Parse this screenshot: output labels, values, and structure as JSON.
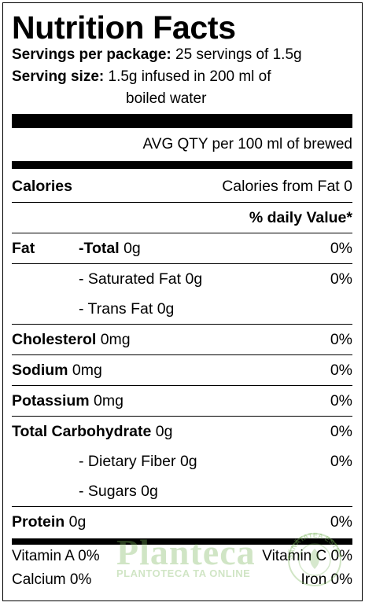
{
  "title": "Nutrition Facts",
  "servings": {
    "label": "Servings per package:",
    "value": "25 servings of 1.5g"
  },
  "serving_size": {
    "label": "Serving size:",
    "value_line1": "1.5g infused in 200 ml of",
    "value_line2": "boiled water"
  },
  "avg_qty": "AVG QTY per 100 ml of brewed",
  "calories": {
    "label": "Calories",
    "from_fat": "Calories from Fat 0"
  },
  "daily_value_header": "% daily Value*",
  "fat": {
    "label": "Fat",
    "total_label": "-Total",
    "total_value": "0g",
    "total_pct": "0%"
  },
  "saturated_fat": {
    "label": "- Saturated Fat",
    "value": "0g",
    "pct": "0%"
  },
  "trans_fat": {
    "label": "- Trans Fat",
    "value": "0g"
  },
  "cholesterol": {
    "label": "Cholesterol",
    "value": "0mg",
    "pct": "0%"
  },
  "sodium": {
    "label": "Sodium",
    "value": "0mg",
    "pct": "0%"
  },
  "potassium": {
    "label": "Potassium",
    "value": "0mg",
    "pct": "0%"
  },
  "carbohydrate": {
    "label": "Total Carbohydrate",
    "value": "0g",
    "pct": "0%"
  },
  "fiber": {
    "label": "- Dietary Fiber",
    "value": "0g",
    "pct": "0%"
  },
  "sugars": {
    "label": "- Sugars",
    "value": "0g"
  },
  "protein": {
    "label": "Protein",
    "value": "0g",
    "pct": "0%"
  },
  "vitamins": {
    "vitamin_a": "Vitamin A 0%",
    "vitamin_c": "Vitamin C 0%",
    "calcium": "Calcium 0%",
    "iron": "Iron 0%"
  },
  "watermark": {
    "brand": "Planteca",
    "tagline": "PLANTOTECA TA ONLINE",
    "seal_text": "SĂNĂTATEA ESTE ÎN NATURĂ",
    "color": "#78b45a"
  }
}
